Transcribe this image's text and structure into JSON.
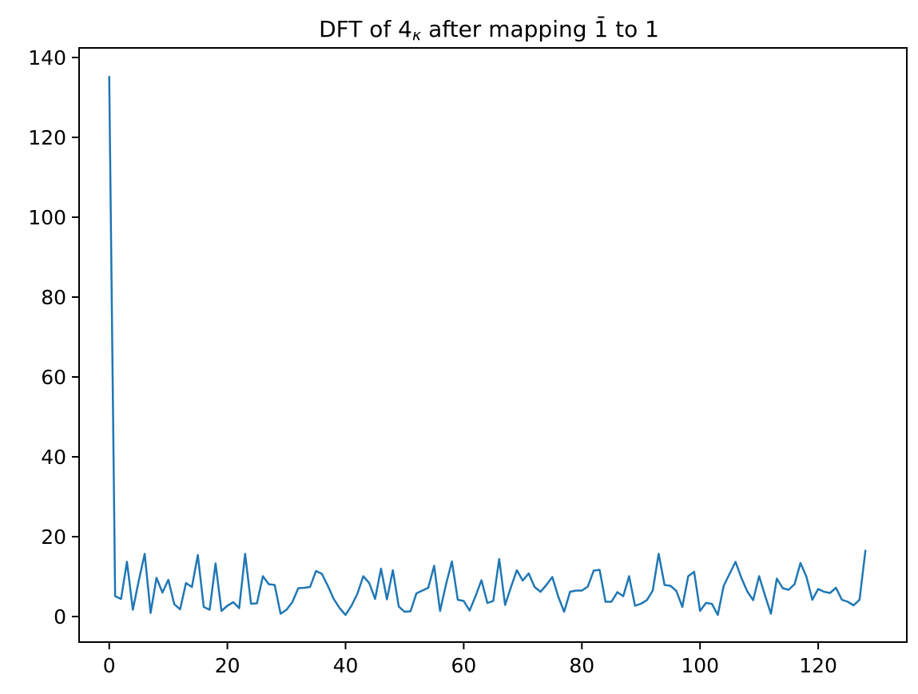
{
  "figure": {
    "title": {
      "prefix": "DFT of 4",
      "subscript": "κ",
      "suffix": " after mapping 1̄ to 1",
      "full_text": "DFT of 4κ after mapping 1̄ to 1"
    }
  },
  "chart_data": {
    "type": "line",
    "title": "DFT of 4κ after mapping 1̄ to 1",
    "xlabel": "",
    "ylabel": "",
    "legend": false,
    "grid": false,
    "series_color": "#1f77b4",
    "axis_color": "#000000",
    "background_color": "#ffffff",
    "x_start": 0,
    "x_step": 1,
    "n_points": 129,
    "x_ticks": [
      0,
      20,
      40,
      60,
      80,
      100,
      120
    ],
    "y_ticks": [
      0,
      20,
      40,
      60,
      80,
      100,
      120,
      140
    ],
    "xlim": [
      -5.1,
      135.0
    ],
    "ylim": [
      -6.4,
      142.4
    ],
    "values": [
      135.2,
      5.1,
      4.4,
      13.7,
      1.7,
      9.0,
      15.7,
      0.9,
      9.7,
      6.0,
      9.2,
      3.1,
      1.8,
      8.4,
      7.4,
      15.4,
      2.4,
      1.7,
      13.3,
      1.4,
      2.7,
      3.6,
      2.1,
      15.7,
      3.2,
      3.3,
      10.1,
      8.1,
      7.9,
      0.7,
      1.7,
      3.6,
      7.1,
      7.2,
      7.4,
      11.4,
      10.7,
      7.7,
      4.4,
      2.1,
      0.4,
      2.7,
      5.7,
      10.1,
      8.4,
      4.4,
      12.0,
      4.3,
      11.6,
      2.5,
      1.2,
      1.3,
      5.8,
      6.5,
      7.2,
      12.7,
      1.4,
      8.0,
      13.8,
      4.2,
      3.9,
      1.5,
      5.1,
      9.1,
      3.4,
      3.9,
      14.4,
      2.9,
      7.4,
      11.6,
      9.0,
      10.8,
      7.4,
      6.2,
      7.9,
      9.9,
      5.0,
      1.2,
      6.2,
      6.5,
      6.5,
      7.5,
      11.5,
      11.7,
      3.7,
      3.7,
      6.1,
      5.1,
      10.1,
      2.7,
      3.2,
      4.1,
      6.5,
      15.7,
      7.9,
      7.7,
      6.4,
      2.4,
      10.1,
      11.2,
      1.4,
      3.4,
      3.2,
      0.4,
      7.7,
      10.7,
      13.7,
      9.7,
      6.3,
      4.1,
      10.1,
      5.3,
      0.7,
      9.5,
      7.1,
      6.7,
      8.1,
      13.4,
      10.0,
      4.2,
      6.9,
      6.2,
      5.9,
      7.2,
      4.2,
      3.7,
      2.8,
      4.2,
      16.5
    ]
  }
}
